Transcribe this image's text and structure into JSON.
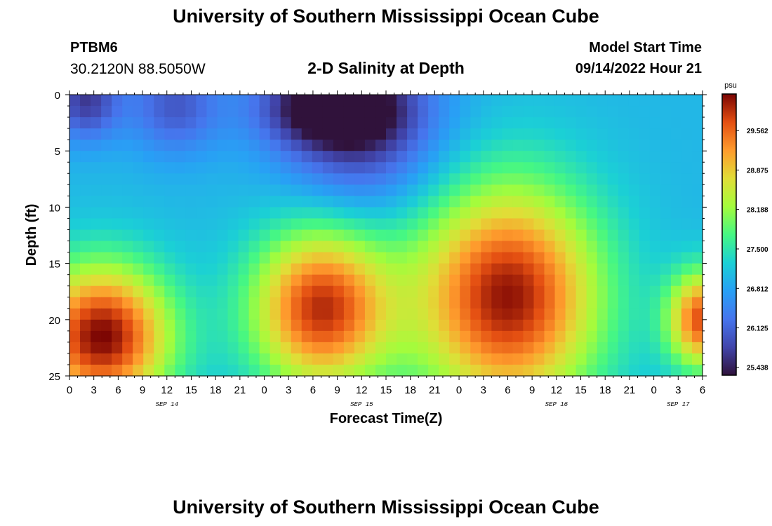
{
  "page": {
    "title": "University of Southern Mississippi Ocean Cube",
    "footer_title": "University of Southern Mississippi Ocean Cube",
    "station_id": "PTBM6",
    "station_location": "30.2120N  88.5050W",
    "plot_title": "2-D Salinity at Depth",
    "model_start_label": "Model Start Time",
    "model_start_value": "09/14/2022 Hour 21"
  },
  "chart_data": {
    "type": "heatmap",
    "title": "2-D Salinity at Depth",
    "xlabel": "Forecast Time(Z)",
    "ylabel": "Depth (ft)",
    "x_range_hours": [
      0,
      78
    ],
    "x_start": "09/14/2022 00Z",
    "x_ticks": [
      {
        "hour": 0,
        "label": "0"
      },
      {
        "hour": 3,
        "label": "3"
      },
      {
        "hour": 6,
        "label": "6"
      },
      {
        "hour": 9,
        "label": "9"
      },
      {
        "hour": 12,
        "label": "12"
      },
      {
        "hour": 15,
        "label": "15"
      },
      {
        "hour": 18,
        "label": "18"
      },
      {
        "hour": 21,
        "label": "21"
      },
      {
        "hour": 24,
        "label": "0"
      },
      {
        "hour": 27,
        "label": "3"
      },
      {
        "hour": 30,
        "label": "6"
      },
      {
        "hour": 33,
        "label": "9"
      },
      {
        "hour": 36,
        "label": "12"
      },
      {
        "hour": 39,
        "label": "15"
      },
      {
        "hour": 42,
        "label": "18"
      },
      {
        "hour": 45,
        "label": "21"
      },
      {
        "hour": 48,
        "label": "0"
      },
      {
        "hour": 51,
        "label": "3"
      },
      {
        "hour": 54,
        "label": "6"
      },
      {
        "hour": 57,
        "label": "9"
      },
      {
        "hour": 60,
        "label": "12"
      },
      {
        "hour": 63,
        "label": "15"
      },
      {
        "hour": 66,
        "label": "18"
      },
      {
        "hour": 69,
        "label": "21"
      },
      {
        "hour": 72,
        "label": "0"
      },
      {
        "hour": 75,
        "label": "3"
      },
      {
        "hour": 78,
        "label": "6"
      }
    ],
    "date_labels": [
      {
        "hour": 12,
        "label": "SEP 14"
      },
      {
        "hour": 36,
        "label": "SEP 15"
      },
      {
        "hour": 60,
        "label": "SEP 16"
      },
      {
        "hour": 75,
        "label": "SEP 17"
      }
    ],
    "y_range_ft": [
      0,
      25
    ],
    "y_ticks": [
      0,
      5,
      10,
      15,
      20,
      25
    ],
    "colorbar": {
      "unit": "psu",
      "range": [
        25.3,
        30.2
      ],
      "ticks": [
        "29.562",
        "28.875",
        "28.188",
        "27.500",
        "26.812",
        "26.125",
        "25.438"
      ]
    },
    "columns": 60,
    "rows": 25,
    "features": [
      {
        "hour": 4,
        "depth": 21.5,
        "salinity": 30.2,
        "sx": 6,
        "sy": 4.5
      },
      {
        "hour": 31,
        "depth": 19,
        "salinity": 29.9,
        "sx": 6,
        "sy": 5
      },
      {
        "hour": 54,
        "depth": 18,
        "salinity": 30.1,
        "sx": 8,
        "sy": 7
      },
      {
        "hour": 78,
        "depth": 20,
        "salinity": 29.7,
        "sx": 3,
        "sy": 3
      },
      {
        "hour": 32,
        "depth": 1,
        "salinity": 25.4,
        "sx": 6,
        "sy": 2.5
      },
      {
        "hour": 36,
        "depth": 3,
        "salinity": 25.7,
        "sx": 7,
        "sy": 5
      },
      {
        "hour": 2,
        "depth": 0.5,
        "salinity": 25.7,
        "sx": 3,
        "sy": 2.5
      },
      {
        "hour": 13,
        "depth": 1,
        "salinity": 26.0,
        "sx": 4,
        "sy": 3
      }
    ]
  }
}
